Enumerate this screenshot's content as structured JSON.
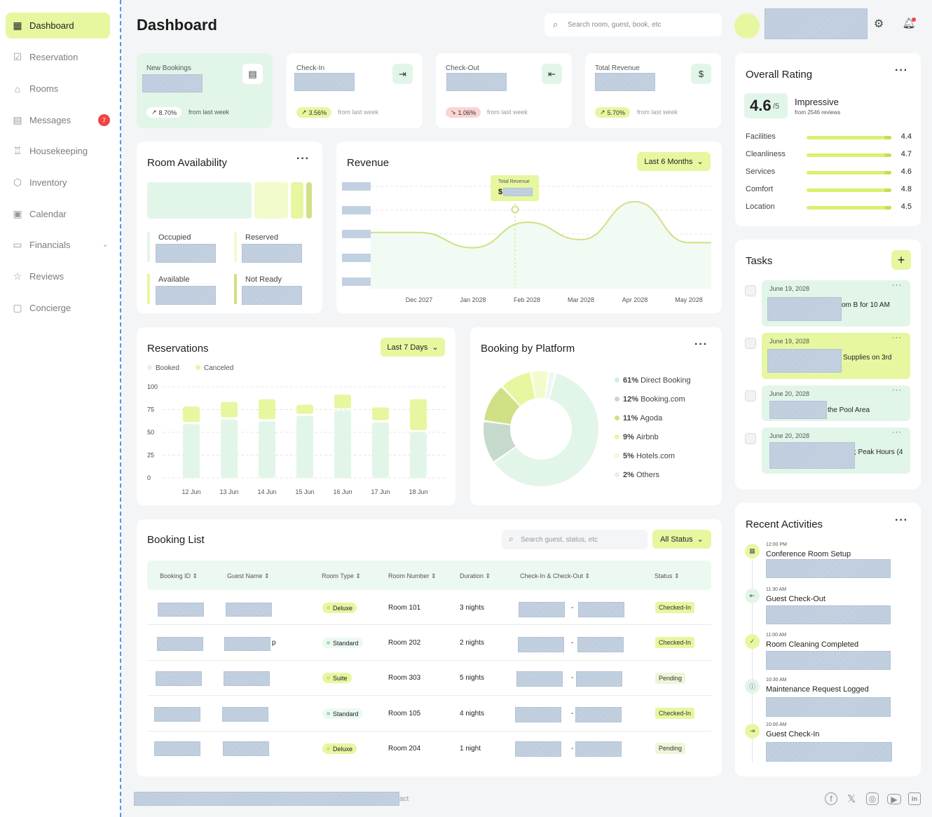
{
  "sidebar": {
    "items": [
      {
        "label": "Dashboard",
        "icon": "grid-icon"
      },
      {
        "label": "Reservation",
        "icon": "calendar-check-icon"
      },
      {
        "label": "Rooms",
        "icon": "home-icon"
      },
      {
        "label": "Messages",
        "icon": "message-icon",
        "badge": "7"
      },
      {
        "label": "Housekeeping",
        "icon": "cleaning-icon"
      },
      {
        "label": "Inventory",
        "icon": "box-icon"
      },
      {
        "label": "Calendar",
        "icon": "calendar-icon"
      },
      {
        "label": "Financials",
        "icon": "money-icon"
      },
      {
        "label": "Reviews",
        "icon": "star-icon"
      },
      {
        "label": "Concierge",
        "icon": "concierge-icon"
      }
    ]
  },
  "header": {
    "title": "Dashboard",
    "search_placeholder": "Search room, guest, book, etc"
  },
  "stats": [
    {
      "label": "New Bookings",
      "change": "8.70%",
      "direction": "up",
      "note": "from last week"
    },
    {
      "label": "Check-In",
      "change": "3.56%",
      "direction": "up",
      "note": "from last week"
    },
    {
      "label": "Check-Out",
      "change": "1.06%",
      "direction": "down",
      "note": "from last week"
    },
    {
      "label": "Total Revenue",
      "change": "5.70%",
      "direction": "up",
      "note": "from last week"
    }
  ],
  "room_availability": {
    "title": "Room Availability",
    "labels": [
      "Occupied",
      "Reserved",
      "Available",
      "Not Ready"
    ]
  },
  "revenue": {
    "title": "Revenue",
    "range": "Last 6 Months",
    "tooltip_label": "Total Revenue",
    "tooltip_prefix": "$"
  },
  "reservations": {
    "title": "Reservations",
    "range": "Last 7 Days",
    "legend": [
      "Booked",
      "Canceled"
    ]
  },
  "platform": {
    "title": "Booking by Platform"
  },
  "chart_data": [
    {
      "type": "line",
      "title": "Revenue",
      "x": [
        "Dec 2027",
        "Jan 2028",
        "Feb 2028",
        "Mar 2028",
        "Apr 2028",
        "May 2028"
      ],
      "series": [
        {
          "values": [
            0.55,
            0.4,
            0.65,
            0.48,
            0.85,
            0.45
          ]
        }
      ]
    },
    {
      "type": "bar",
      "title": "Reservations",
      "categories": [
        "12 Jun",
        "13 Jun",
        "14 Jun",
        "15 Jun",
        "16 Jun",
        "17 Jun",
        "18 Jun"
      ],
      "yticks": [
        "100",
        "75",
        "50",
        "25",
        "0"
      ],
      "ylim": [
        0,
        100
      ],
      "series": [
        {
          "name": "Booked",
          "values": [
            59,
            64,
            62,
            68,
            74,
            61,
            50
          ]
        },
        {
          "name": "Canceled",
          "values": [
            17,
            17,
            22,
            10,
            15,
            14,
            34
          ]
        }
      ]
    },
    {
      "type": "pie",
      "title": "Booking by Platform",
      "slices": [
        {
          "pct": "61%",
          "name": "Direct Booking",
          "value": 61,
          "color": "#e2f5e9"
        },
        {
          "pct": "12%",
          "name": "Booking.com",
          "value": 12,
          "color": "#c5d9cc"
        },
        {
          "pct": "11%",
          "name": "Agoda",
          "value": 11,
          "color": "#cfe184"
        },
        {
          "pct": "9%",
          "name": "Airbnb",
          "value": 9,
          "color": "#e6f7a0"
        },
        {
          "pct": "5%",
          "name": "Hotels.com",
          "value": 5,
          "color": "#f2fbcc"
        },
        {
          "pct": "2%",
          "name": "Others",
          "value": 2,
          "color": "#ecf9f1"
        }
      ]
    }
  ],
  "booking_list": {
    "title": "Booking List",
    "search_placeholder": "Search guest, status, etc",
    "filter": "All Status",
    "columns": [
      "Booking ID",
      "Guest Name",
      "Room Type",
      "Room Number",
      "Duration",
      "Check-In & Check-Out",
      "Status"
    ],
    "rows": [
      {
        "room_type": "Deluxe",
        "room": "Room 101",
        "duration": "3 nights",
        "status": "Checked-In"
      },
      {
        "room_type": "Standard",
        "room": "Room 202",
        "duration": "2 nights",
        "status": "Checked-In"
      },
      {
        "room_type": "Suite",
        "room": "Room 303",
        "duration": "5 nights",
        "status": "Pending"
      },
      {
        "room_type": "Standard",
        "room": "Room 105",
        "duration": "4 nights",
        "status": "Checked-In"
      },
      {
        "room_type": "Deluxe",
        "room": "Room 204",
        "duration": "1 night",
        "status": "Pending"
      }
    ]
  },
  "rating": {
    "title": "Overall Rating",
    "score": "4.6",
    "out_of": "/5",
    "label": "Impressive",
    "reviews": "from 2546 reviews",
    "rows": [
      {
        "name": "Facilities",
        "value": "4.4"
      },
      {
        "name": "Cleanliness",
        "value": "4.7"
      },
      {
        "name": "Services",
        "value": "4.6"
      },
      {
        "name": "Comfort",
        "value": "4.8"
      },
      {
        "name": "Location",
        "value": "4.5"
      }
    ]
  },
  "tasks": {
    "title": "Tasks",
    "items": [
      {
        "date": "June 19, 2028",
        "text": "om B for 10 AM"
      },
      {
        "date": "June 19, 2028",
        "text": "Supplies on 3rd"
      },
      {
        "date": "June 20, 2028",
        "text": "the Pool Area"
      },
      {
        "date": "June 20, 2028",
        "text": "; Peak Hours (4"
      }
    ]
  },
  "activities": {
    "title": "Recent Activities",
    "items": [
      {
        "time": "12:00 PM",
        "title": "Conference Room Setup",
        "icon": "room-icon"
      },
      {
        "time": "11:30 AM",
        "title": "Guest Check-Out",
        "icon": "exit-icon"
      },
      {
        "time": "11:00 AM",
        "title": "Room Cleaning Completed",
        "icon": "check-icon"
      },
      {
        "time": "10:30 AM",
        "title": "Maintenance Request Logged",
        "icon": "info-icon"
      },
      {
        "time": "10:00 AM",
        "title": "Guest Check-In",
        "icon": "enter-icon"
      }
    ]
  },
  "footer": {
    "text_tail": "act",
    "social": [
      "facebook-icon",
      "x-icon",
      "instagram-icon",
      "youtube-icon",
      "linkedin-icon"
    ]
  }
}
